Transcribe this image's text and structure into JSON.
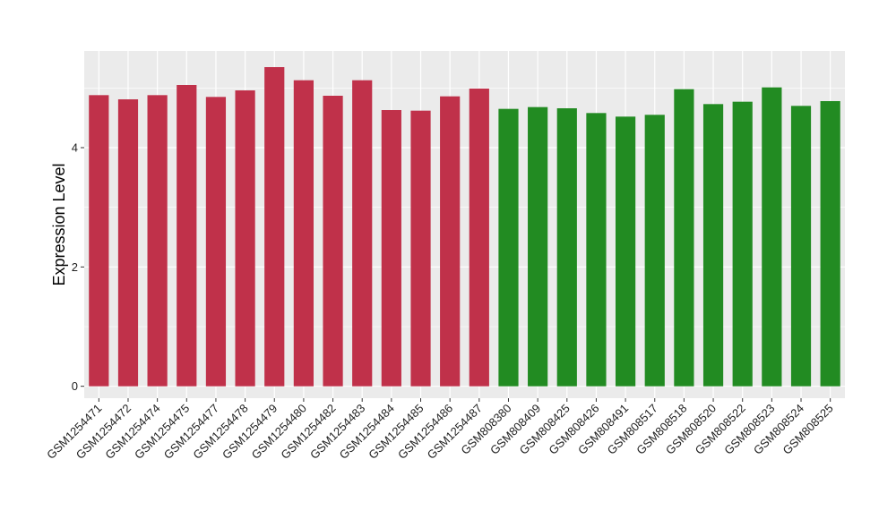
{
  "chart_data": {
    "type": "bar",
    "ylabel": "Expression Level",
    "xlabel": "",
    "title": "",
    "ylim": [
      -0.2,
      5.62
    ],
    "yticks": [
      0,
      2,
      4
    ],
    "grid": true,
    "legend": "none",
    "colors": {
      "group1": "#C0314A",
      "group2": "#228B22",
      "panel_bg": "#EBEBEB",
      "grid": "#FFFFFF"
    },
    "categories": [
      "GSM1254471",
      "GSM1254472",
      "GSM1254474",
      "GSM1254475",
      "GSM1254477",
      "GSM1254478",
      "GSM1254479",
      "GSM1254480",
      "GSM1254482",
      "GSM1254483",
      "GSM1254484",
      "GSM1254485",
      "GSM1254486",
      "GSM1254487",
      "GSM808380",
      "GSM808409",
      "GSM808425",
      "GSM808426",
      "GSM808491",
      "GSM808517",
      "GSM808518",
      "GSM808520",
      "GSM808522",
      "GSM808523",
      "GSM808524",
      "GSM808525"
    ],
    "groups": [
      0,
      0,
      0,
      0,
      0,
      0,
      0,
      0,
      0,
      0,
      0,
      0,
      0,
      0,
      1,
      1,
      1,
      1,
      1,
      1,
      1,
      1,
      1,
      1,
      1,
      1
    ],
    "values": [
      4.88,
      4.81,
      4.88,
      5.05,
      4.85,
      4.96,
      5.35,
      5.13,
      4.87,
      5.13,
      4.63,
      4.62,
      4.86,
      4.99,
      4.65,
      4.68,
      4.66,
      4.58,
      4.52,
      4.55,
      4.98,
      4.73,
      4.77,
      5.01,
      4.7,
      4.78
    ]
  }
}
